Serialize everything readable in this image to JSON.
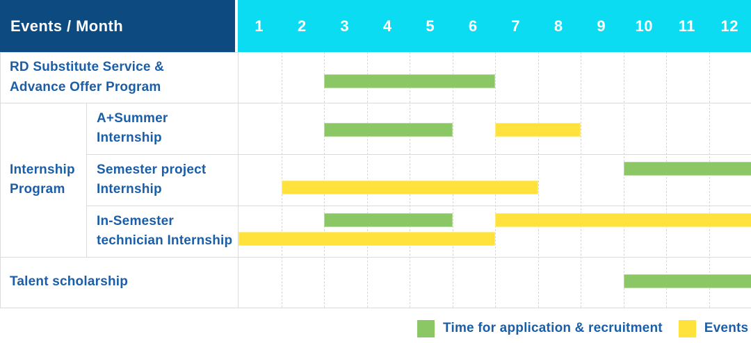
{
  "header": {
    "title": "Events / Month"
  },
  "colors_ui": {
    "header_bg": "#0C4A80",
    "months_bg": "#0CDCF2",
    "label_text": "#1B5EA8",
    "grid_line": "#DBDBDB"
  },
  "chart_data": {
    "type": "table",
    "subtype": "gantt",
    "title": "Events / Month",
    "months": [
      "1",
      "2",
      "3",
      "4",
      "5",
      "6",
      "7",
      "8",
      "9",
      "10",
      "11",
      "12"
    ],
    "colors": {
      "recruitment": "#8BC765",
      "event": "#FFE23B"
    },
    "legend": [
      {
        "kind": "recruitment",
        "label": "Time for application & recruitment",
        "color": "#8BC765"
      },
      {
        "kind": "event",
        "label": "Events",
        "color": "#FFE23B"
      }
    ],
    "group_label": "Internship\nProgram",
    "rows": [
      {
        "label": "RD Substitute Service &\nAdvance Offer Program",
        "group": null,
        "bars": [
          {
            "kind": "recruitment",
            "start": 3,
            "end": 6,
            "lane": 0
          }
        ]
      },
      {
        "label": "A+Summer\nInternship",
        "group": "Internship Program",
        "bars": [
          {
            "kind": "recruitment",
            "start": 3,
            "end": 5,
            "lane": 0
          },
          {
            "kind": "event",
            "start": 7,
            "end": 8,
            "lane": 0
          }
        ]
      },
      {
        "label": "Semester project\nInternship",
        "group": "Internship Program",
        "bars": [
          {
            "kind": "recruitment",
            "start": 10,
            "end": 12,
            "lane": 0
          },
          {
            "kind": "event",
            "start": 2,
            "end": 7,
            "lane": 1
          }
        ]
      },
      {
        "label": "In-Semester\ntechnician Internship",
        "group": "Internship Program",
        "bars": [
          {
            "kind": "recruitment",
            "start": 3,
            "end": 5,
            "lane": 0
          },
          {
            "kind": "event",
            "start": 7,
            "end": 12,
            "lane": 0
          },
          {
            "kind": "event",
            "start": 1,
            "end": 6,
            "lane": 1
          }
        ]
      },
      {
        "label": "Talent scholarship",
        "group": null,
        "bars": [
          {
            "kind": "recruitment",
            "start": 10,
            "end": 12,
            "lane": 0
          }
        ]
      }
    ]
  }
}
